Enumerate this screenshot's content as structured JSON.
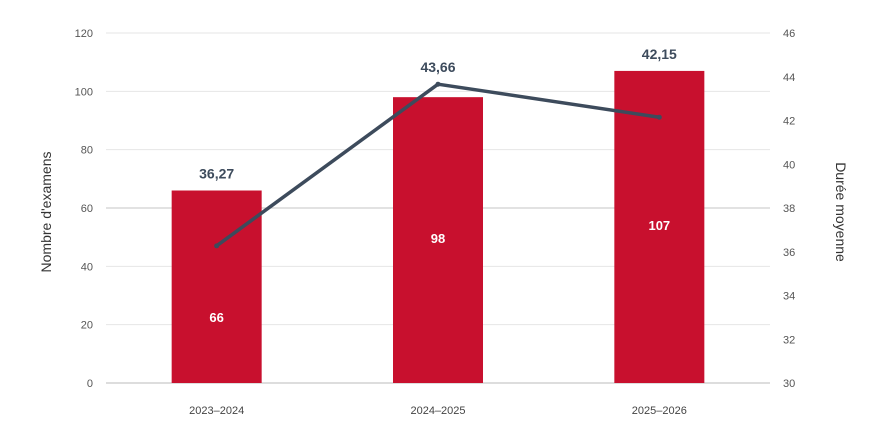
{
  "chart_data": {
    "type": "bar",
    "categories": [
      "2023–2024",
      "2024–2025",
      "2025–2026"
    ],
    "series": [
      {
        "type": "bar",
        "axis": "left",
        "values": [
          66,
          98,
          107
        ],
        "labels": [
          "66",
          "98",
          "107"
        ]
      },
      {
        "type": "line",
        "axis": "right",
        "values": [
          36.27,
          43.66,
          42.15
        ],
        "labels": [
          "36,27",
          "43,66",
          "42,15"
        ]
      }
    ],
    "ylabel": "Nombre d'examens",
    "y2label": "Durée moyenne",
    "ylim": [
      0,
      120
    ],
    "y2lim": [
      30,
      46
    ],
    "yticks": [
      "0",
      "20",
      "40",
      "60",
      "80",
      "100",
      "120"
    ],
    "y2ticks": [
      "30",
      "32",
      "34",
      "36",
      "38",
      "40",
      "42",
      "44",
      "46"
    ],
    "grid": true,
    "colors": {
      "bar": "#c8102e",
      "line": "#3d4b5c",
      "grid": "#e6e6e6",
      "axis": "#bbbbbb"
    }
  }
}
